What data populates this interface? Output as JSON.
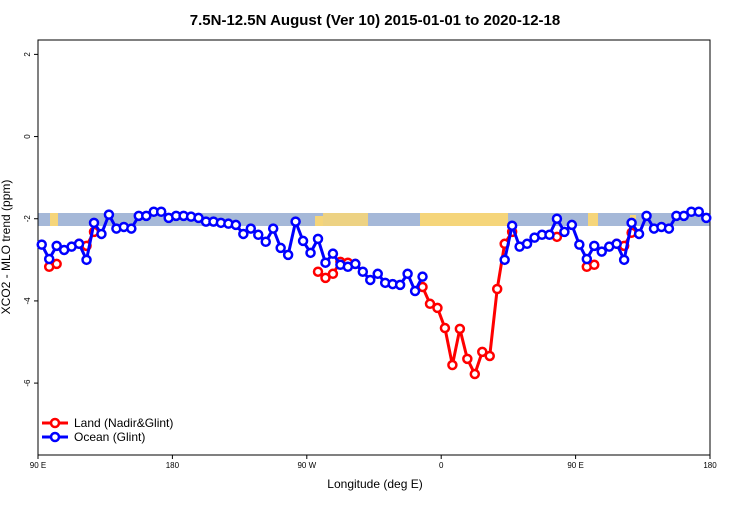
{
  "chart_data": {
    "type": "line",
    "title": "7.5N-12.5N August (Ver 10)   2015-01-01 to 2020-12-18",
    "x_label": "Longitude (deg E)",
    "y_label": "XCO2 - MLO trend (ppm)",
    "xlim": [
      90,
      540
    ],
    "xticks": [
      {
        "value": 90,
        "label": "90 E"
      },
      180,
      {
        "value": 270,
        "label": "90 W"
      },
      {
        "value": 360,
        "label": "0"
      },
      {
        "value": 450,
        "label": "90 E"
      },
      {
        "value": 540,
        "label": "180"
      }
    ],
    "ylim": [
      -7.75,
      2.35
    ],
    "yticks": [
      -6,
      -4,
      -2,
      0,
      2
    ],
    "legend": "bottom-left",
    "x": [
      92.5,
      97.5,
      102.5,
      107.5,
      112.5,
      117.5,
      122.5,
      127.5,
      132.5,
      137.5,
      142.5,
      147.5,
      152.5,
      157.5,
      162.5,
      167.5,
      172.5,
      177.5,
      182.5,
      187.5,
      192.5,
      197.5,
      202.5,
      207.5,
      212.5,
      217.5,
      222.5,
      227.5,
      232.5,
      237.5,
      242.5,
      247.5,
      252.5,
      257.5,
      262.5,
      267.5,
      272.5,
      277.5,
      282.5,
      287.5,
      292.5,
      297.5,
      302.5,
      307.5,
      312.5,
      317.5,
      322.5,
      327.5,
      332.5,
      337.5,
      342.5,
      347.5,
      352.5,
      357.5,
      362.5,
      367.5,
      372.5,
      377.5,
      382.5,
      387.5,
      392.5,
      397.5,
      402.5,
      407.5,
      412.5,
      417.5,
      422.5,
      427.5,
      432.5,
      437.5,
      442.5,
      447.5,
      452.5,
      457.5,
      462.5,
      467.5,
      472.5,
      477.5,
      482.5,
      487.5,
      492.5,
      497.5,
      502.5,
      507.5,
      512.5,
      517.5,
      522.5,
      527.5,
      532.5,
      537.5
    ],
    "series": [
      {
        "name": "Land (Nadir&Glint)",
        "color": "#ff0000",
        "values": [
          null,
          -3.17,
          -3.1,
          null,
          null,
          -2.61,
          -2.66,
          -2.32,
          null,
          null,
          null,
          null,
          null,
          null,
          null,
          null,
          null,
          null,
          null,
          null,
          null,
          null,
          null,
          null,
          null,
          null,
          null,
          null,
          null,
          null,
          null,
          null,
          null,
          null,
          null,
          null,
          null,
          -3.29,
          -3.44,
          -3.34,
          -3.05,
          -3.07,
          -3.1,
          null,
          null,
          null,
          null,
          null,
          null,
          null,
          null,
          -3.66,
          -4.07,
          -4.17,
          -4.66,
          -5.56,
          -4.68,
          -5.41,
          -5.78,
          -5.24,
          -5.34,
          -3.71,
          -2.61,
          -2.32,
          null,
          null,
          null,
          null,
          null,
          -2.44,
          null,
          null,
          null,
          -3.17,
          -3.12,
          null,
          null,
          -2.61,
          -2.66,
          -2.34,
          null,
          null,
          null,
          null,
          null,
          null,
          null,
          null,
          null,
          null
        ]
      },
      {
        "name": "Ocean (Glint)",
        "color": "#0000ff",
        "values": [
          -2.63,
          -2.98,
          -2.66,
          -2.76,
          -2.68,
          -2.61,
          -3.0,
          -2.1,
          -2.37,
          -1.9,
          -2.24,
          -2.2,
          -2.24,
          -1.93,
          -1.93,
          -1.83,
          -1.83,
          -1.98,
          -1.93,
          -1.93,
          -1.95,
          -1.98,
          -2.07,
          -2.07,
          -2.1,
          -2.12,
          -2.15,
          -2.37,
          -2.24,
          -2.39,
          -2.56,
          -2.24,
          -2.71,
          -2.88,
          -2.07,
          -2.54,
          -2.83,
          -2.49,
          -3.07,
          -2.85,
          -3.12,
          -3.17,
          -3.1,
          -3.29,
          -3.49,
          -3.34,
          -3.56,
          -3.59,
          -3.61,
          -3.34,
          -3.76,
          -3.41,
          null,
          null,
          null,
          null,
          null,
          null,
          null,
          null,
          null,
          null,
          -3.0,
          -2.17,
          -2.68,
          -2.61,
          -2.46,
          -2.39,
          -2.39,
          -2.0,
          -2.32,
          -2.15,
          -2.63,
          -2.98,
          -2.66,
          -2.8,
          -2.68,
          -2.61,
          -3.0,
          -2.1,
          -2.37,
          -1.93,
          -2.24,
          -2.2,
          -2.24,
          -1.93,
          -1.93,
          -1.83,
          -1.83,
          -1.98
        ]
      }
    ]
  }
}
